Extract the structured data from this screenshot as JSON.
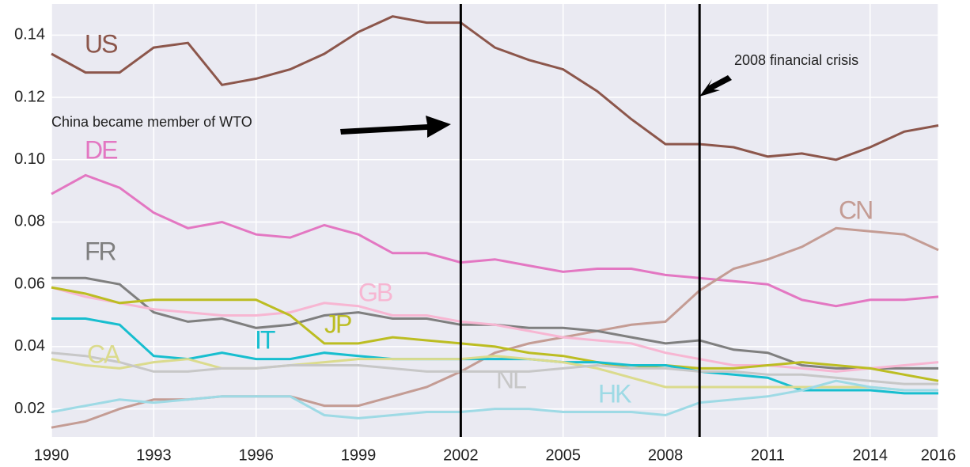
{
  "chart_data": {
    "type": "line",
    "x": [
      1990,
      1991,
      1992,
      1993,
      1994,
      1995,
      1996,
      1997,
      1998,
      1999,
      2000,
      2001,
      2002,
      2003,
      2004,
      2005,
      2006,
      2007,
      2008,
      2009,
      2010,
      2011,
      2012,
      2013,
      2014,
      2015,
      2016
    ],
    "xlim": [
      1990,
      2016
    ],
    "xticks": [
      1990,
      1993,
      1996,
      1999,
      2002,
      2005,
      2008,
      2011,
      2014,
      2016
    ],
    "ylim": [
      0.011,
      0.15
    ],
    "yticks": [
      0.02,
      0.04,
      0.06,
      0.08,
      {
        "value": 0.1,
        "label": "0.10"
      },
      0.12,
      0.14
    ],
    "grid": true,
    "vlines": [
      2002,
      2009
    ],
    "annotations": [
      "China became member of WTO",
      "2008 financial crisis"
    ],
    "series": [
      {
        "name": "US",
        "color": "#8c564b",
        "values": [
          0.134,
          0.128,
          0.128,
          0.136,
          0.1375,
          0.124,
          0.126,
          0.129,
          0.134,
          0.141,
          0.146,
          0.144,
          0.144,
          0.136,
          0.132,
          0.129,
          0.122,
          0.113,
          0.105,
          0.105,
          0.104,
          0.101,
          0.102,
          0.1,
          0.104,
          0.109,
          0.111
        ]
      },
      {
        "name": "DE",
        "color": "#e377c2",
        "values": [
          0.089,
          0.095,
          0.091,
          0.083,
          0.078,
          0.08,
          0.076,
          0.075,
          0.079,
          0.076,
          0.07,
          0.07,
          0.067,
          0.068,
          0.066,
          0.064,
          0.065,
          0.065,
          0.063,
          0.062,
          0.061,
          0.06,
          0.055,
          0.053,
          0.055,
          0.055,
          0.056
        ]
      },
      {
        "name": "CN",
        "color": "#c49c94",
        "values": [
          0.014,
          0.016,
          0.02,
          0.023,
          0.023,
          0.024,
          0.024,
          0.024,
          0.021,
          0.021,
          0.024,
          0.027,
          0.032,
          0.038,
          0.041,
          0.043,
          0.045,
          0.047,
          0.048,
          0.058,
          0.065,
          0.068,
          0.072,
          0.078,
          0.077,
          0.076,
          0.071
        ]
      },
      {
        "name": "FR",
        "color": "#7f7f7f",
        "values": [
          0.062,
          0.062,
          0.06,
          0.051,
          0.048,
          0.049,
          0.046,
          0.047,
          0.05,
          0.051,
          0.049,
          0.049,
          0.047,
          0.047,
          0.046,
          0.046,
          0.045,
          0.043,
          0.041,
          0.042,
          0.039,
          0.038,
          0.034,
          0.033,
          0.033,
          0.033,
          0.033
        ]
      },
      {
        "name": "GB",
        "color": "#f7b6d2",
        "values": [
          0.059,
          0.056,
          0.054,
          0.052,
          0.051,
          0.05,
          0.05,
          0.051,
          0.054,
          0.053,
          0.05,
          0.05,
          0.048,
          0.047,
          0.045,
          0.043,
          0.042,
          0.041,
          0.038,
          0.036,
          0.034,
          0.034,
          0.033,
          0.032,
          0.033,
          0.034,
          0.035
        ]
      },
      {
        "name": "JP",
        "color": "#bcbd22",
        "values": [
          0.059,
          0.057,
          0.054,
          0.055,
          0.055,
          0.055,
          0.055,
          0.05,
          0.041,
          0.041,
          0.043,
          0.042,
          0.041,
          0.04,
          0.038,
          0.037,
          0.035,
          0.033,
          0.034,
          0.033,
          0.033,
          0.034,
          0.035,
          0.034,
          0.033,
          0.031,
          0.029
        ]
      },
      {
        "name": "IT",
        "color": "#17becf",
        "values": [
          0.049,
          0.049,
          0.047,
          0.037,
          0.036,
          0.038,
          0.036,
          0.036,
          0.038,
          0.037,
          0.036,
          0.036,
          0.036,
          0.036,
          0.036,
          0.035,
          0.035,
          0.034,
          0.034,
          0.032,
          0.031,
          0.03,
          0.026,
          0.026,
          0.026,
          0.025,
          0.025
        ]
      },
      {
        "name": "CA",
        "color": "#dbdb8d",
        "values": [
          0.036,
          0.034,
          0.033,
          0.035,
          0.036,
          0.033,
          0.033,
          0.034,
          0.035,
          0.036,
          0.036,
          0.036,
          0.036,
          0.037,
          0.036,
          0.035,
          0.033,
          0.03,
          0.027,
          0.027,
          0.027,
          0.027,
          0.027,
          0.027,
          0.027,
          0.026,
          0.026
        ]
      },
      {
        "name": "NL",
        "color": "#c7c7c7",
        "values": [
          0.038,
          0.037,
          0.035,
          0.032,
          0.032,
          0.033,
          0.033,
          0.034,
          0.034,
          0.034,
          0.033,
          0.032,
          0.032,
          0.032,
          0.032,
          0.033,
          0.034,
          0.033,
          0.033,
          0.032,
          0.032,
          0.031,
          0.031,
          0.03,
          0.029,
          0.028,
          0.028
        ]
      },
      {
        "name": "HK",
        "color": "#9edae5",
        "values": [
          0.019,
          0.021,
          0.023,
          0.022,
          0.023,
          0.024,
          0.024,
          0.024,
          0.018,
          0.017,
          0.018,
          0.019,
          0.019,
          0.02,
          0.02,
          0.019,
          0.019,
          0.019,
          0.018,
          0.022,
          0.023,
          0.024,
          0.026,
          0.029,
          0.027,
          0.026,
          0.026
        ]
      }
    ]
  }
}
